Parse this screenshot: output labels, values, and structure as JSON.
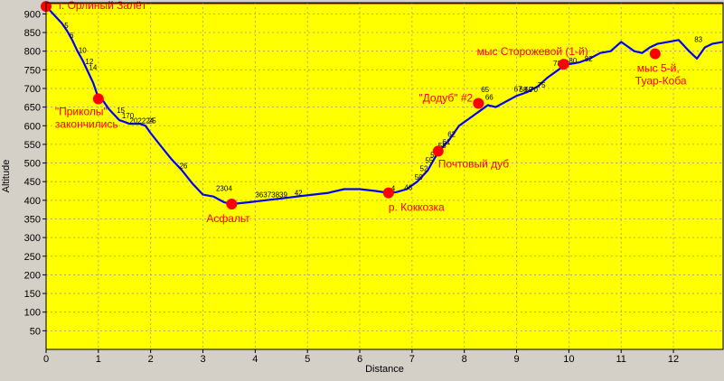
{
  "chart_data": {
    "type": "line",
    "title": "",
    "xlabel": "Distance",
    "ylabel": "Altitude",
    "xlim": [
      0,
      12.95
    ],
    "ylim": [
      0,
      930
    ],
    "x_ticks": [
      0,
      1,
      2,
      3,
      4,
      5,
      6,
      7,
      8,
      9,
      10,
      11,
      12
    ],
    "y_ticks": [
      50,
      100,
      150,
      200,
      250,
      300,
      350,
      400,
      450,
      500,
      550,
      600,
      650,
      700,
      750,
      800,
      850,
      900
    ],
    "grid": true,
    "colors": {
      "plot_background": "#ffff00",
      "line": "#0000ff",
      "marker": "#ff0000",
      "annotation_text": "#ff0000",
      "frame": "#8b0000"
    },
    "series": [
      {
        "name": "",
        "x": [
          0.0,
          0.1,
          0.2,
          0.3,
          0.4,
          0.5,
          0.6,
          0.7,
          0.8,
          0.9,
          1.0,
          1.1,
          1.2,
          1.3,
          1.4,
          1.5,
          1.6,
          1.7,
          1.8,
          1.9,
          2.0,
          2.2,
          2.4,
          2.6,
          2.8,
          3.0,
          3.2,
          3.4,
          3.55,
          3.7,
          3.9,
          4.2,
          4.5,
          4.8,
          5.1,
          5.4,
          5.7,
          6.0,
          6.3,
          6.55,
          6.7,
          6.9,
          7.1,
          7.3,
          7.5,
          7.7,
          7.9,
          8.05,
          8.2,
          8.3,
          8.45,
          8.6,
          8.8,
          9.0,
          9.2,
          9.4,
          9.6,
          9.8,
          9.9,
          10.0,
          10.2,
          10.4,
          10.6,
          10.8,
          11.0,
          11.1,
          11.25,
          11.4,
          11.55,
          11.7,
          11.9,
          12.1,
          12.3,
          12.45,
          12.6,
          12.75,
          12.95
        ],
        "y": [
          920,
          905,
          890,
          875,
          855,
          830,
          800,
          775,
          745,
          715,
          675,
          665,
          645,
          630,
          615,
          610,
          605,
          605,
          605,
          600,
          580,
          545,
          510,
          480,
          445,
          415,
          410,
          395,
          390,
          392,
          395,
          400,
          405,
          410,
          415,
          420,
          430,
          430,
          425,
          420,
          422,
          430,
          450,
          480,
          530,
          560,
          600,
          615,
          630,
          640,
          655,
          650,
          665,
          680,
          690,
          705,
          730,
          750,
          760,
          765,
          770,
          780,
          795,
          800,
          825,
          815,
          800,
          795,
          810,
          820,
          825,
          830,
          800,
          780,
          810,
          820,
          825
        ]
      }
    ],
    "annotations": [
      {
        "label": "г. Орлиный Залёт",
        "x": 0.0,
        "y": 920
      },
      {
        "label": "\"Приколы\"",
        "label2": "закончились",
        "x": 1.0,
        "y": 672
      },
      {
        "label": "Асфальт",
        "x": 3.55,
        "y": 390
      },
      {
        "label": "р. Коккозка",
        "x": 6.55,
        "y": 420
      },
      {
        "label": "Почтовый дуб",
        "x": 7.5,
        "y": 532
      },
      {
        "label": "\"Додуб\" #2",
        "x": 8.27,
        "y": 660
      },
      {
        "label": "мыс Сторожевой (1-й)",
        "x": 9.9,
        "y": 765
      },
      {
        "label": "мыс 5-й,",
        "label2": "Туар-Коба",
        "x": 11.65,
        "y": 793
      }
    ],
    "km_markers": [
      {
        "label": "5",
        "x": 0.35,
        "y": 862
      },
      {
        "label": "6",
        "x": 0.45,
        "y": 836
      },
      {
        "label": "10",
        "x": 0.62,
        "y": 795
      },
      {
        "label": "12",
        "x": 0.75,
        "y": 765
      },
      {
        "label": "14",
        "x": 0.82,
        "y": 750
      },
      {
        "label": "15",
        "x": 1.35,
        "y": 635
      },
      {
        "label": "170",
        "x": 1.45,
        "y": 620
      },
      {
        "label": "202224",
        "x": 1.6,
        "y": 607
      },
      {
        "label": "25",
        "x": 1.95,
        "y": 607
      },
      {
        "label": "26",
        "x": 2.55,
        "y": 485
      },
      {
        "label": "2304",
        "x": 3.25,
        "y": 425
      },
      {
        "label": "36373839",
        "x": 4.0,
        "y": 408
      },
      {
        "label": "42",
        "x": 4.75,
        "y": 413
      },
      {
        "label": "4",
        "x": 6.6,
        "y": 425
      },
      {
        "label": "46",
        "x": 6.85,
        "y": 428
      },
      {
        "label": "50",
        "x": 7.05,
        "y": 455
      },
      {
        "label": "52",
        "x": 7.15,
        "y": 478
      },
      {
        "label": "55",
        "x": 7.25,
        "y": 500
      },
      {
        "label": "57",
        "x": 7.35,
        "y": 515
      },
      {
        "label": "58",
        "x": 7.5,
        "y": 540
      },
      {
        "label": "61",
        "x": 7.58,
        "y": 550
      },
      {
        "label": "62",
        "x": 7.68,
        "y": 570
      },
      {
        "label": "65",
        "x": 8.32,
        "y": 690
      },
      {
        "label": "66",
        "x": 8.4,
        "y": 670
      },
      {
        "label": "67",
        "x": 8.95,
        "y": 692
      },
      {
        "label": "68",
        "x": 9.05,
        "y": 690
      },
      {
        "label": "69",
        "x": 9.15,
        "y": 690
      },
      {
        "label": "70",
        "x": 9.25,
        "y": 690
      },
      {
        "label": "75",
        "x": 9.4,
        "y": 702
      },
      {
        "label": "78",
        "x": 9.7,
        "y": 760
      },
      {
        "label": "79",
        "x": 9.85,
        "y": 762
      },
      {
        "label": "80",
        "x": 10.0,
        "y": 768
      },
      {
        "label": "82",
        "x": 10.3,
        "y": 772
      },
      {
        "label": "83",
        "x": 12.4,
        "y": 825
      }
    ]
  }
}
